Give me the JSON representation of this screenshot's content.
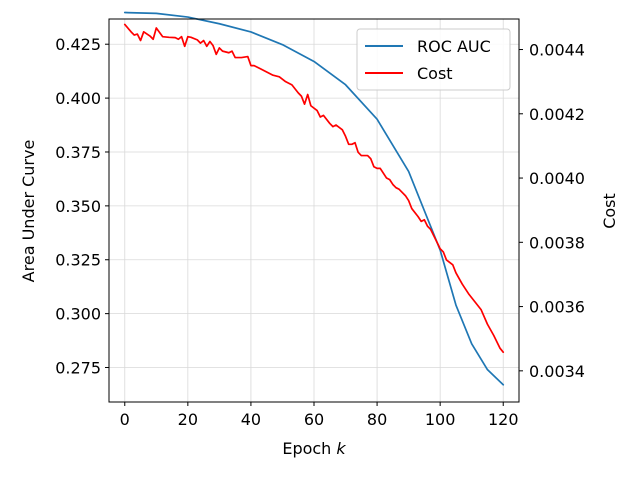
{
  "chart_data": {
    "type": "line",
    "title": "",
    "xlabel_text": "Epoch ",
    "xlabel_var": "k",
    "ylabel_left": "Area Under Curve",
    "ylabel_right": "Cost",
    "xlim": [
      -5,
      125
    ],
    "ylim_left": [
      0.259,
      0.4367
    ],
    "ylim_right": [
      0.003303,
      0.004495
    ],
    "x_ticks": [
      0,
      20,
      40,
      60,
      80,
      100,
      120
    ],
    "x_tick_labels": [
      "0",
      "20",
      "40",
      "60",
      "80",
      "100",
      "120"
    ],
    "y_left_ticks": [
      0.275,
      0.3,
      0.325,
      0.35,
      0.375,
      0.4,
      0.425
    ],
    "y_left_tick_labels": [
      "0.275",
      "0.300",
      "0.325",
      "0.350",
      "0.375",
      "0.400",
      "0.425"
    ],
    "y_right_ticks": [
      0.0034,
      0.0036,
      0.0038,
      0.004,
      0.0042,
      0.0044
    ],
    "y_right_tick_labels": [
      "0.0034",
      "0.0036",
      "0.0038",
      "0.0040",
      "0.0042",
      "0.0044"
    ],
    "grid": true,
    "legend_position": "top-right",
    "series": [
      {
        "name": "ROC AUC",
        "axis": "left",
        "color": "#1f77b4",
        "x": [
          0,
          10,
          20,
          30,
          40,
          50,
          60,
          70,
          80,
          90,
          100,
          105,
          110,
          115,
          120
        ],
        "y": [
          0.4397,
          0.4393,
          0.4376,
          0.4345,
          0.4307,
          0.4248,
          0.417,
          0.4062,
          0.3902,
          0.366,
          0.3295,
          0.304,
          0.286,
          0.274,
          0.267
        ]
      },
      {
        "name": "Cost",
        "axis": "right",
        "color": "#ff0000",
        "x": [
          0,
          2,
          3,
          4,
          5,
          6,
          8,
          9,
          10,
          12,
          14,
          16,
          17,
          18,
          19,
          20,
          21,
          23,
          24,
          25,
          26,
          27,
          28,
          29,
          30,
          31,
          33,
          34,
          35,
          37,
          39,
          40,
          41,
          43,
          45,
          47,
          49,
          51,
          53,
          55,
          56,
          57,
          58,
          59,
          61,
          62,
          63,
          65,
          66,
          67,
          69,
          70,
          71,
          72,
          73,
          74,
          75,
          77,
          78,
          79,
          80,
          81,
          83,
          84,
          85,
          86,
          87,
          89,
          90,
          91,
          93,
          94,
          95,
          96,
          97,
          98,
          99,
          100,
          101,
          102,
          104,
          105,
          107,
          109,
          111,
          113,
          115,
          117,
          119,
          120
        ],
        "y": [
          0.004478,
          0.004455,
          0.004445,
          0.004448,
          0.004428,
          0.004455,
          0.004442,
          0.004432,
          0.004467,
          0.00444,
          0.004438,
          0.004437,
          0.004432,
          0.00444,
          0.00441,
          0.00444,
          0.004438,
          0.00443,
          0.00442,
          0.004428,
          0.00441,
          0.004425,
          0.004412,
          0.004385,
          0.004405,
          0.004395,
          0.00439,
          0.004395,
          0.004375,
          0.004375,
          0.004378,
          0.00435,
          0.00435,
          0.00434,
          0.00433,
          0.00432,
          0.004315,
          0.0043,
          0.00429,
          0.004265,
          0.004255,
          0.00423,
          0.00426,
          0.004225,
          0.00421,
          0.00419,
          0.004195,
          0.00417,
          0.00416,
          0.004165,
          0.00415,
          0.00413,
          0.004105,
          0.004105,
          0.00411,
          0.00408,
          0.00407,
          0.00407,
          0.00406,
          0.004035,
          0.00403,
          0.00403,
          0.004,
          0.003995,
          0.00398,
          0.00397,
          0.003965,
          0.003945,
          0.00393,
          0.003905,
          0.00388,
          0.003865,
          0.00387,
          0.00385,
          0.00384,
          0.00382,
          0.0038,
          0.00378,
          0.00377,
          0.003745,
          0.00373,
          0.003705,
          0.00367,
          0.00364,
          0.003615,
          0.00359,
          0.003545,
          0.00351,
          0.00347,
          0.003458
        ]
      }
    ]
  }
}
